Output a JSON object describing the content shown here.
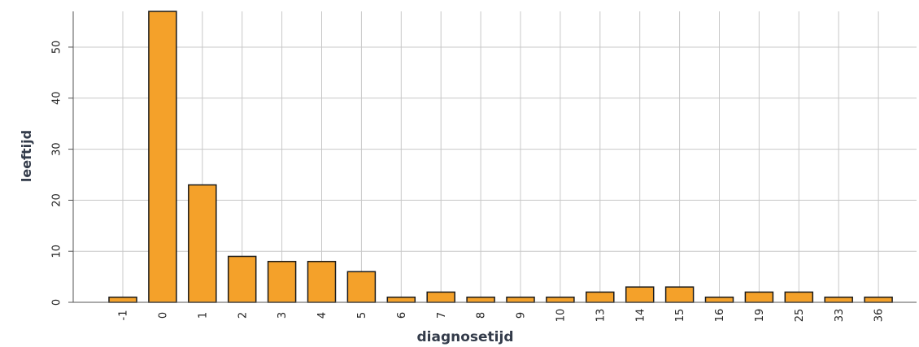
{
  "chart_data": {
    "type": "bar",
    "title": "",
    "xlabel": "diagnosetijd",
    "ylabel": "leeftijd",
    "categories": [
      "-1",
      "0",
      "1",
      "2",
      "3",
      "4",
      "5",
      "6",
      "7",
      "8",
      "9",
      "10",
      "13",
      "14",
      "15",
      "16",
      "19",
      "25",
      "33",
      "36"
    ],
    "values": [
      1,
      57,
      23,
      9,
      8,
      8,
      6,
      1,
      2,
      1,
      1,
      1,
      2,
      3,
      3,
      1,
      2,
      2,
      1,
      1
    ],
    "ylim": [
      0,
      57
    ],
    "yticks": [
      0,
      10,
      20,
      30,
      40,
      50
    ],
    "grid": true,
    "colors": {
      "bar": "#f4a12a",
      "bar_edge": "#1a1a1a",
      "grid": "#c8c8c8",
      "axis_text": "#333b4a"
    }
  }
}
